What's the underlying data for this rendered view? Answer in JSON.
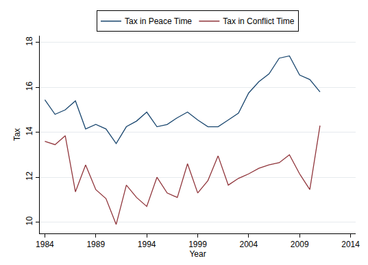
{
  "chart_data": {
    "type": "line",
    "x_label": "Year",
    "y_label": "Tax",
    "x": [
      1984,
      1985,
      1986,
      1987,
      1988,
      1989,
      1990,
      1991,
      1992,
      1993,
      1994,
      1995,
      1996,
      1997,
      1998,
      1999,
      2000,
      2001,
      2002,
      2003,
      2004,
      2005,
      2006,
      2007,
      2008,
      2009,
      2010,
      2011
    ],
    "series": [
      {
        "name": "Tax in Peace Time",
        "color": "#1a476f",
        "values": [
          15.45,
          14.8,
          15.0,
          15.4,
          14.15,
          14.35,
          14.15,
          13.5,
          14.25,
          14.5,
          14.9,
          14.25,
          14.35,
          14.65,
          14.9,
          14.55,
          14.25,
          14.25,
          14.55,
          14.85,
          15.75,
          16.25,
          16.6,
          17.3,
          17.4,
          16.55,
          16.35,
          15.8
        ]
      },
      {
        "name": "Tax in Conflict Time",
        "color": "#90353b",
        "values": [
          13.6,
          13.45,
          13.85,
          11.35,
          12.55,
          11.45,
          11.05,
          9.9,
          11.65,
          11.1,
          10.7,
          12.0,
          11.3,
          11.1,
          12.6,
          11.3,
          11.85,
          12.95,
          11.65,
          11.95,
          12.15,
          12.4,
          12.55,
          12.65,
          13.0,
          12.15,
          11.45,
          14.3
        ]
      }
    ],
    "xlim": [
      1983.5,
      2014.5
    ],
    "xticks": [
      1984,
      1989,
      1994,
      1999,
      2004,
      2009,
      2014
    ],
    "ylim": [
      9.5,
      18.3
    ],
    "yticks": [
      10,
      12,
      14,
      16,
      18
    ],
    "grid": true,
    "legend": "top"
  }
}
